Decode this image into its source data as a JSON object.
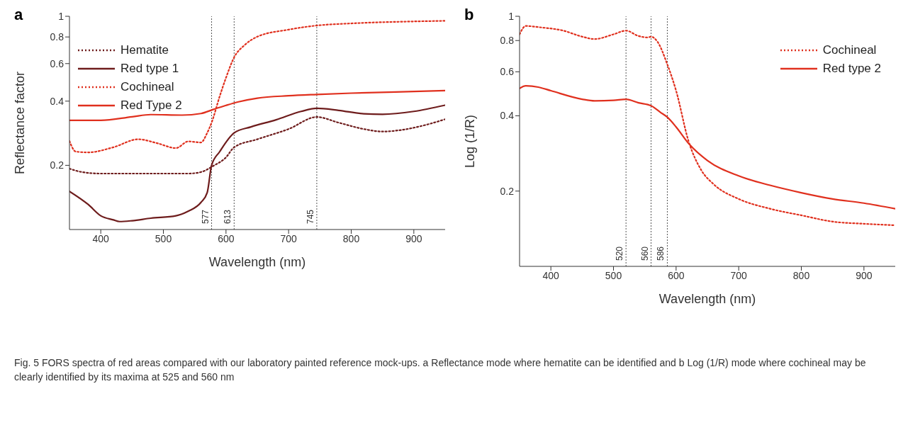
{
  "chart_data": [
    {
      "type": "line",
      "title": "a",
      "xlabel": "Wavelength (nm)",
      "ylabel": "Reflectance factor",
      "log": "y",
      "xlim": [
        350,
        950
      ],
      "xticks": [
        400,
        500,
        600,
        700,
        800,
        900
      ],
      "ylim": [
        0.1,
        1
      ],
      "yticks": [
        0.2,
        0.4,
        0.6,
        0.8,
        1
      ],
      "grid": false,
      "legend": "top left",
      "series": [
        {
          "name": "Hematite",
          "color": "#6e1c1c",
          "line_style": "dotted",
          "x": [
            350,
            370,
            400,
            450,
            500,
            540,
            560,
            580,
            600,
            613,
            650,
            700,
            745,
            780,
            820,
            850,
            880,
            920,
            950
          ],
          "values": [
            0.193,
            0.186,
            0.183,
            0.183,
            0.183,
            0.183,
            0.186,
            0.199,
            0.218,
            0.243,
            0.265,
            0.296,
            0.337,
            0.317,
            0.296,
            0.288,
            0.293,
            0.31,
            0.329
          ]
        },
        {
          "name": "Red type 1",
          "color": "#6e1c1c",
          "line_style": "solid",
          "x": [
            350,
            380,
            400,
            420,
            430,
            450,
            480,
            520,
            540,
            560,
            570,
            577,
            590,
            613,
            640,
            680,
            720,
            745,
            780,
            820,
            850,
            900,
            950
          ],
          "values": [
            0.151,
            0.131,
            0.116,
            0.111,
            0.109,
            0.11,
            0.113,
            0.116,
            0.122,
            0.134,
            0.149,
            0.2,
            0.232,
            0.284,
            0.303,
            0.327,
            0.358,
            0.37,
            0.362,
            0.349,
            0.347,
            0.358,
            0.383
          ]
        },
        {
          "name": "Cochineal",
          "color": "#e0301e",
          "line_style": "dotted",
          "x": [
            350,
            360,
            380,
            420,
            460,
            490,
            520,
            540,
            560,
            570,
            577,
            590,
            600,
            613,
            630,
            650,
            700,
            745,
            800,
            900,
            950
          ],
          "values": [
            0.26,
            0.232,
            0.23,
            0.243,
            0.265,
            0.254,
            0.241,
            0.259,
            0.256,
            0.284,
            0.317,
            0.422,
            0.515,
            0.642,
            0.734,
            0.802,
            0.866,
            0.905,
            0.926,
            0.946,
            0.952
          ]
        },
        {
          "name": "Red Type 2",
          "color": "#e0301e",
          "line_style": "solid",
          "x": [
            350,
            400,
            450,
            480,
            530,
            560,
            580,
            600,
            620,
            650,
            700,
            745,
            800,
            900,
            950
          ],
          "values": [
            0.325,
            0.325,
            0.338,
            0.346,
            0.344,
            0.35,
            0.366,
            0.382,
            0.397,
            0.413,
            0.424,
            0.43,
            0.436,
            0.444,
            0.448
          ]
        }
      ],
      "ref_lines": [
        {
          "axis": "x",
          "value": 577,
          "label": "577"
        },
        {
          "axis": "x",
          "value": 613,
          "label": "613"
        },
        {
          "axis": "x",
          "value": 745,
          "label": "745"
        }
      ],
      "annotations": [
        "Fig. 5  FORS spectra of red areas compared with our laboratory painted reference mock-ups. a Reflectance mode where hematite can be identified and b Log (1/R) mode where cochineal may be clearly identified by its maxima at 525 and 560 nm"
      ]
    },
    {
      "type": "line",
      "title": "b",
      "xlabel": "Wavelength (nm)",
      "ylabel": "Log (1/R)",
      "log": "y",
      "xlim": [
        350,
        950
      ],
      "xticks": [
        400,
        500,
        600,
        700,
        800,
        900
      ],
      "ylim": [
        0.1,
        1
      ],
      "yticks": [
        0.2,
        0.4,
        0.6,
        0.8,
        1
      ],
      "grid": false,
      "legend": "top right",
      "series": [
        {
          "name": "Cochineal",
          "color": "#e0301e",
          "line_style": "dotted",
          "x": [
            350,
            360,
            380,
            420,
            450,
            470,
            500,
            520,
            540,
            555,
            560,
            570,
            586,
            600,
            620,
            640,
            660,
            700,
            750,
            800,
            850,
            900,
            950
          ],
          "values": [
            0.847,
            0.915,
            0.905,
            0.876,
            0.829,
            0.811,
            0.847,
            0.876,
            0.834,
            0.823,
            0.829,
            0.793,
            0.642,
            0.504,
            0.316,
            0.243,
            0.213,
            0.186,
            0.17,
            0.16,
            0.151,
            0.148,
            0.146
          ]
        },
        {
          "name": "Red type 2",
          "color": "#e0301e",
          "line_style": "solid",
          "x": [
            350,
            360,
            380,
            400,
            450,
            470,
            500,
            520,
            540,
            560,
            575,
            586,
            600,
            620,
            650,
            700,
            750,
            800,
            850,
            900,
            950
          ],
          "values": [
            0.515,
            0.527,
            0.521,
            0.504,
            0.466,
            0.459,
            0.461,
            0.466,
            0.451,
            0.439,
            0.413,
            0.395,
            0.361,
            0.31,
            0.265,
            0.23,
            0.211,
            0.197,
            0.186,
            0.179,
            0.17
          ]
        }
      ],
      "ref_lines": [
        {
          "axis": "x",
          "value": 520,
          "label": "520"
        },
        {
          "axis": "x",
          "value": 560,
          "label": "560"
        },
        {
          "axis": "x",
          "value": 586,
          "label": "586"
        }
      ]
    }
  ]
}
